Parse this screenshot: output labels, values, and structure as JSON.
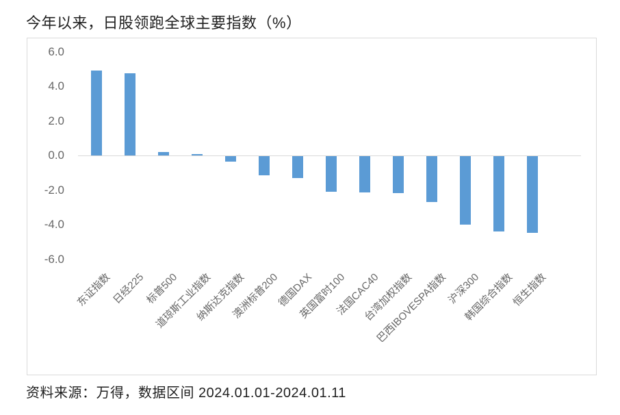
{
  "title": "今年以来，日股领跑全球主要指数（%）",
  "source_note": "资料来源：万得，数据区间 2024.01.01-2024.01.11",
  "colors": {
    "bar": "#5b9bd5",
    "axis_text": "#666666",
    "frame_border": "#d9d9d9",
    "zero_line": "#d9d9d9",
    "title_text": "#1f1f1f"
  },
  "chart_data": {
    "type": "bar",
    "title": "今年以来，日股领跑全球主要指数（%）",
    "categories": [
      "东证指数",
      "日经225",
      "标普500",
      "道琼斯工业指数",
      "纳斯达克指数",
      "澳洲标普200",
      "德国DAX",
      "英国富时100",
      "法国CAC40",
      "台湾加权指数",
      "巴西IBOVESPA指数",
      "沪深300",
      "韩国综合指数",
      "恒生指数"
    ],
    "values": [
      4.9,
      4.75,
      0.2,
      0.07,
      -0.3,
      -1.1,
      -1.25,
      -2.05,
      -2.1,
      -2.15,
      -2.65,
      -3.95,
      -4.35,
      -4.45
    ],
    "ylabel": "",
    "xlabel": "",
    "ylim": [
      -6.0,
      6.0
    ],
    "yticks": [
      6.0,
      4.0,
      2.0,
      0.0,
      -2.0,
      -4.0,
      -6.0
    ],
    "ytick_labels": [
      "6.0",
      "4.0",
      "2.0",
      "0.0",
      "-2.0",
      "-4.0",
      "-6.0"
    ],
    "grid": false,
    "legend": false,
    "bar_color": "#5b9bd5",
    "source": "资料来源：万得，数据区间 2024.01.01-2024.01.11"
  }
}
